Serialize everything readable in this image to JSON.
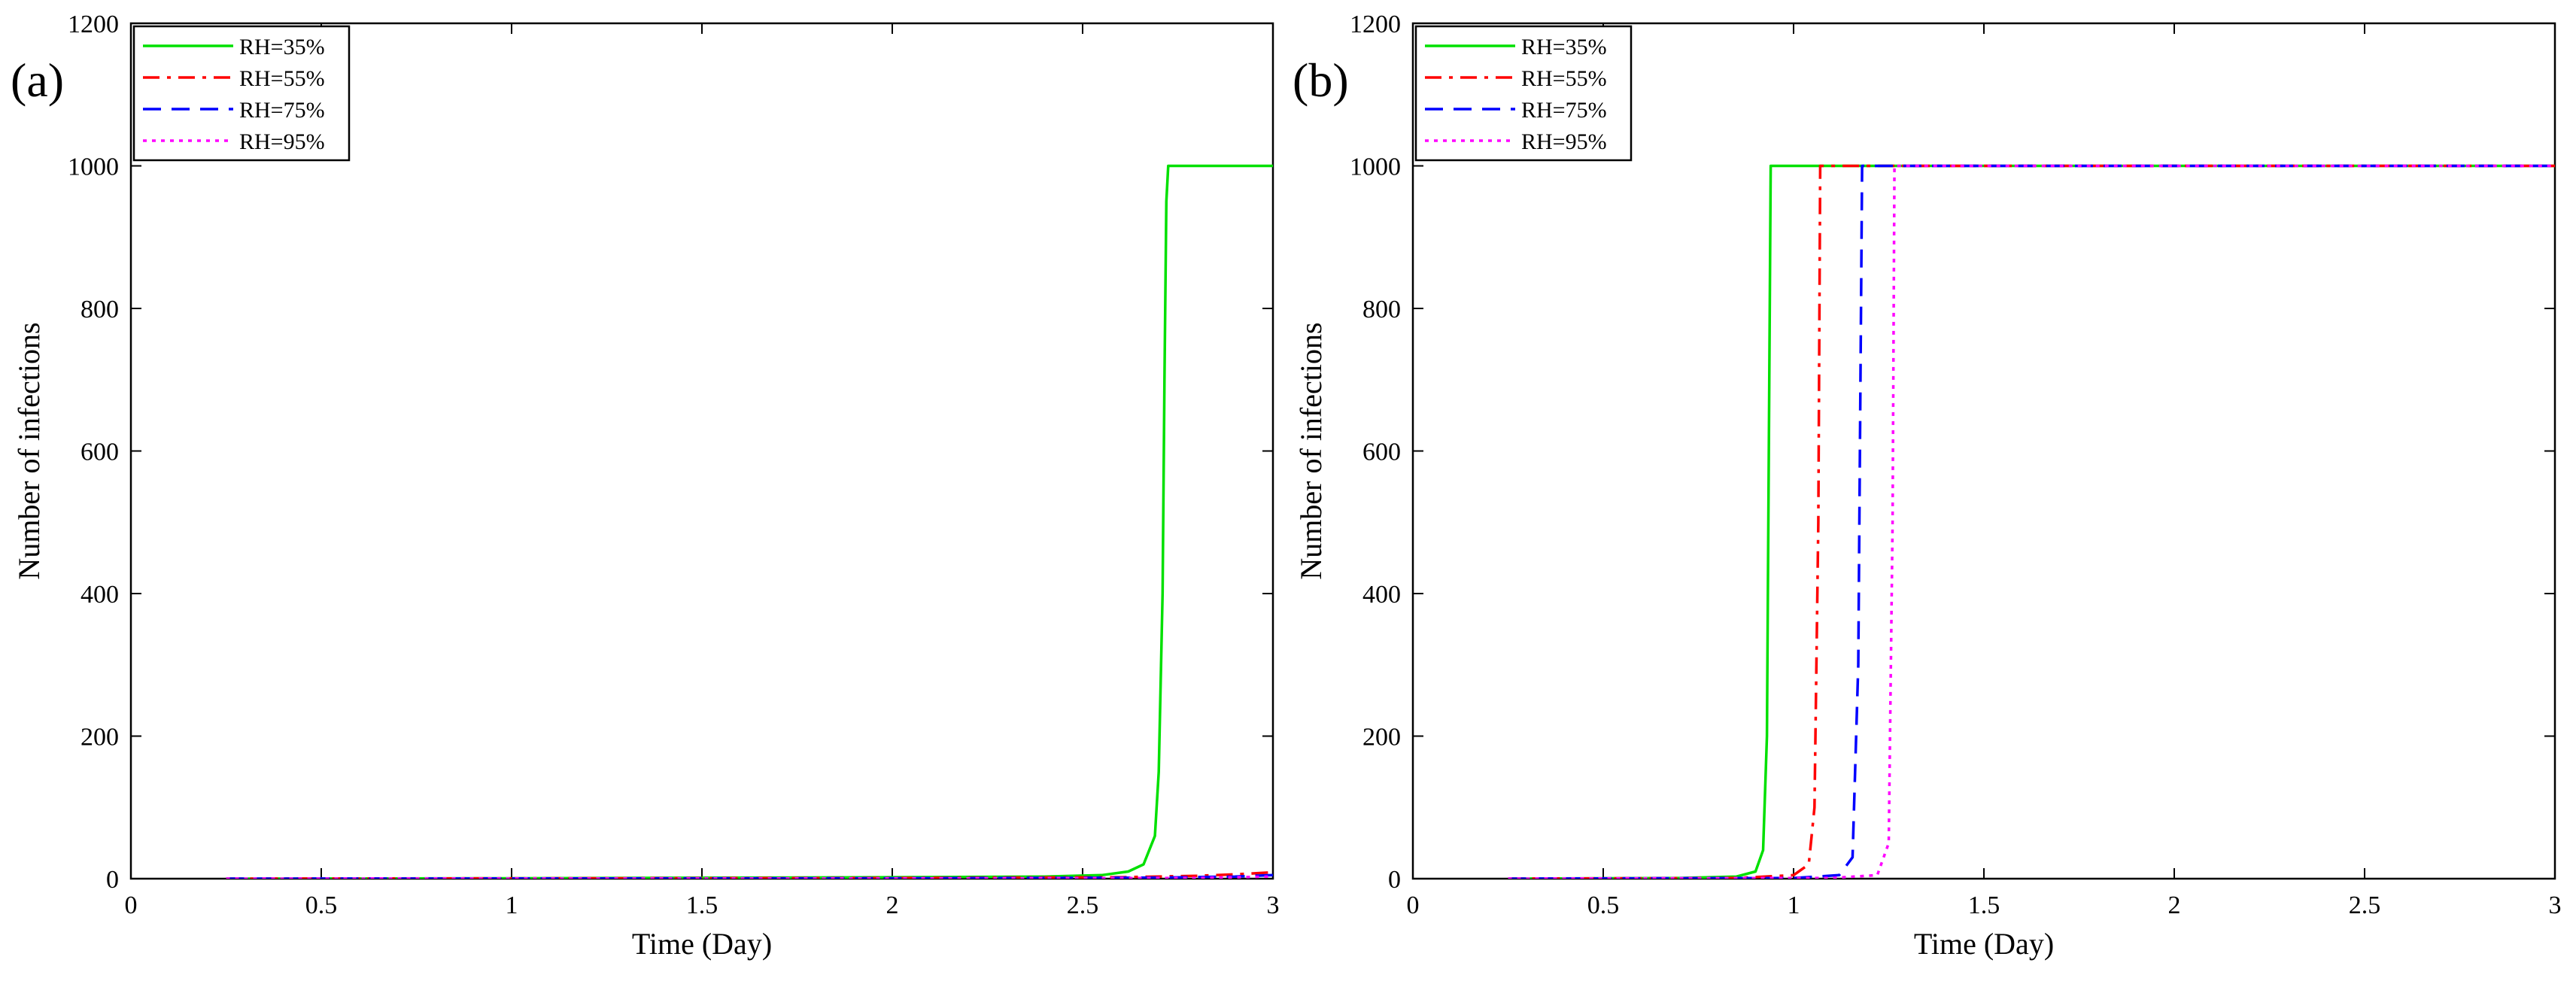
{
  "chart_data": [
    {
      "type": "line",
      "panel_label": "(a)",
      "xlabel": "Time (Day)",
      "ylabel": "Number of infections",
      "xlim": [
        0,
        3
      ],
      "ylim": [
        0,
        1200
      ],
      "xticks": [
        "0",
        "0.5",
        "1",
        "1.5",
        "2",
        "2.5",
        "3"
      ],
      "yticks": [
        "0",
        "200",
        "400",
        "600",
        "800",
        "1000",
        "1200"
      ],
      "grid": false,
      "legend": "top-left",
      "series": [
        {
          "name": "RH=35%",
          "color": "#00e000",
          "dash": "solid",
          "points": [
            [
              0.25,
              0
            ],
            [
              1.0,
              0.5
            ],
            [
              2.0,
              2
            ],
            [
              2.4,
              3
            ],
            [
              2.55,
              5
            ],
            [
              2.62,
              10
            ],
            [
              2.66,
              20
            ],
            [
              2.69,
              60
            ],
            [
              2.7,
              150
            ],
            [
              2.71,
              400
            ],
            [
              2.715,
              700
            ],
            [
              2.72,
              950
            ],
            [
              2.725,
              1000
            ],
            [
              3.0,
              1000
            ]
          ]
        },
        {
          "name": "RH=55%",
          "color": "#ff0000",
          "dash": "dash-dot",
          "points": [
            [
              0.25,
              0
            ],
            [
              2.0,
              1
            ],
            [
              2.6,
              2
            ],
            [
              2.8,
              4
            ],
            [
              2.9,
              6
            ],
            [
              3.0,
              9
            ]
          ]
        },
        {
          "name": "RH=75%",
          "color": "#0000ff",
          "dash": "dashed",
          "points": [
            [
              0.25,
              0
            ],
            [
              2.0,
              0.5
            ],
            [
              2.7,
              1.5
            ],
            [
              2.9,
              3
            ],
            [
              3.0,
              5
            ]
          ]
        },
        {
          "name": "RH=95%",
          "color": "#ff00ff",
          "dash": "dotted",
          "points": [
            [
              0.25,
              0
            ],
            [
              2.0,
              0.3
            ],
            [
              2.8,
              1
            ],
            [
              3.0,
              3
            ]
          ]
        }
      ]
    },
    {
      "type": "line",
      "panel_label": "(b)",
      "xlabel": "Time (Day)",
      "ylabel": "Number of infections",
      "xlim": [
        0,
        3
      ],
      "ylim": [
        0,
        1200
      ],
      "xticks": [
        "0",
        "0.5",
        "1",
        "1.5",
        "2",
        "2.5",
        "3"
      ],
      "yticks": [
        "0",
        "200",
        "400",
        "600",
        "800",
        "1000",
        "1200"
      ],
      "grid": false,
      "legend": "top-left",
      "series": [
        {
          "name": "RH=35%",
          "color": "#00e000",
          "dash": "solid",
          "points": [
            [
              0.25,
              0
            ],
            [
              0.7,
              1
            ],
            [
              0.85,
              3
            ],
            [
              0.9,
              10
            ],
            [
              0.92,
              40
            ],
            [
              0.93,
              200
            ],
            [
              0.935,
              600
            ],
            [
              0.94,
              1000
            ],
            [
              3.0,
              1000
            ]
          ]
        },
        {
          "name": "RH=55%",
          "color": "#ff0000",
          "dash": "dash-dot",
          "points": [
            [
              0.25,
              0
            ],
            [
              0.85,
              1
            ],
            [
              1.0,
              5
            ],
            [
              1.04,
              20
            ],
            [
              1.055,
              100
            ],
            [
              1.065,
              500
            ],
            [
              1.07,
              1000
            ],
            [
              3.0,
              1000
            ]
          ]
        },
        {
          "name": "RH=75%",
          "color": "#0000ff",
          "dash": "dashed",
          "points": [
            [
              0.25,
              0
            ],
            [
              1.0,
              1
            ],
            [
              1.12,
              5
            ],
            [
              1.155,
              30
            ],
            [
              1.17,
              300
            ],
            [
              1.18,
              1000
            ],
            [
              3.0,
              1000
            ]
          ]
        },
        {
          "name": "RH=95%",
          "color": "#ff00ff",
          "dash": "dotted",
          "points": [
            [
              0.25,
              0
            ],
            [
              1.1,
              1
            ],
            [
              1.22,
              5
            ],
            [
              1.25,
              50
            ],
            [
              1.26,
              500
            ],
            [
              1.265,
              1000
            ],
            [
              3.0,
              1000
            ]
          ]
        }
      ]
    }
  ]
}
